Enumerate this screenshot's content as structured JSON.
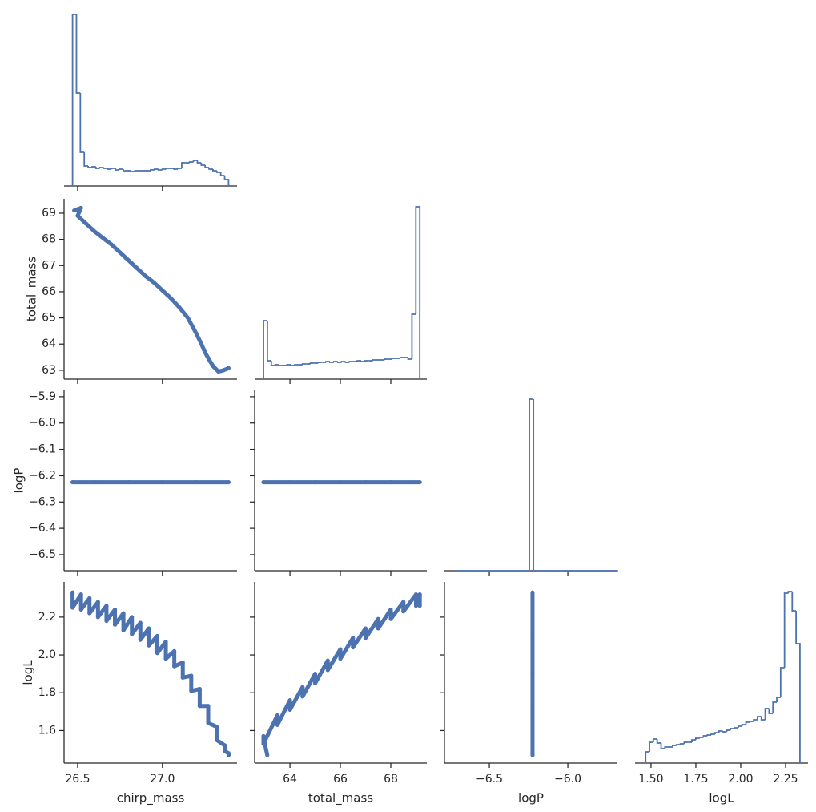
{
  "chart_data": [
    {
      "type": "histogram",
      "color": "#4c72b0",
      "xlim": [
        26.42,
        27.44
      ],
      "xticks": [
        26.5,
        27.0
      ],
      "ylim": [
        0,
        222
      ],
      "bins": [
        26.47,
        26.493,
        26.516,
        26.539,
        26.562,
        26.585,
        26.608,
        26.631,
        26.654,
        26.677,
        26.7,
        26.723,
        26.746,
        26.769,
        26.792,
        26.815,
        26.838,
        26.861,
        26.884,
        26.907,
        26.93,
        26.953,
        26.976,
        26.999,
        27.022,
        27.045,
        27.068,
        27.091,
        27.114,
        27.137,
        27.16,
        27.183,
        27.206,
        27.229,
        27.252,
        27.275,
        27.298,
        27.321,
        27.344,
        27.367,
        27.39
      ],
      "counts": [
        214,
        116,
        42,
        25,
        23,
        24,
        22,
        23,
        22,
        21,
        22,
        20,
        21,
        19,
        19,
        18,
        19,
        19,
        19,
        19,
        20,
        21,
        20,
        21,
        22,
        22,
        21,
        22,
        29,
        29,
        30,
        32,
        29,
        26,
        23,
        21,
        19,
        17,
        13,
        8
      ]
    },
    {
      "type": "scatter",
      "color": "#4c72b0",
      "xlim": [
        26.42,
        27.44
      ],
      "xticks": [
        26.5,
        27.0
      ],
      "ylim": [
        62.66,
        69.55
      ],
      "yticks": [
        63,
        64,
        65,
        66,
        67,
        68,
        69
      ],
      "ylabel": "total_mass",
      "x": [
        26.48,
        26.5,
        26.52,
        26.5,
        26.55,
        26.6,
        26.65,
        26.7,
        26.75,
        26.8,
        26.85,
        26.9,
        26.95,
        27.0,
        27.05,
        27.1,
        27.15,
        27.2,
        27.23,
        27.25,
        27.28,
        27.3,
        27.33,
        27.36,
        27.39
      ],
      "y": [
        69.1,
        69.15,
        69.2,
        68.9,
        68.6,
        68.3,
        68.05,
        67.8,
        67.5,
        67.2,
        66.9,
        66.6,
        66.35,
        66.05,
        65.75,
        65.4,
        65.0,
        64.4,
        64.0,
        63.7,
        63.35,
        63.15,
        62.95,
        63.0,
        63.08
      ]
    },
    {
      "type": "histogram",
      "color": "#4c72b0",
      "xlim": [
        62.6,
        69.43
      ],
      "xticks": [
        64,
        66,
        68
      ],
      "ylim": [
        0,
        225
      ],
      "bins": [
        62.95,
        63.105,
        63.26,
        63.415,
        63.57,
        63.725,
        63.88,
        64.035,
        64.19,
        64.345,
        64.5,
        64.655,
        64.81,
        64.965,
        65.12,
        65.275,
        65.43,
        65.585,
        65.74,
        65.895,
        66.05,
        66.205,
        66.36,
        66.515,
        66.67,
        66.825,
        66.98,
        67.135,
        67.29,
        67.445,
        67.6,
        67.755,
        67.91,
        68.065,
        68.22,
        68.375,
        68.53,
        68.685,
        68.84,
        68.995,
        69.15
      ],
      "counts": [
        73,
        23,
        17,
        18,
        17,
        17,
        18,
        17,
        18,
        18,
        19,
        19,
        20,
        20,
        21,
        21,
        22,
        21,
        22,
        21,
        22,
        21,
        22,
        22,
        23,
        22,
        23,
        23,
        24,
        24,
        24,
        25,
        25,
        26,
        26,
        27,
        27,
        25,
        81,
        215
      ]
    },
    {
      "type": "scatter",
      "color": "#4c72b0",
      "xlim": [
        26.42,
        27.44
      ],
      "xticks": [
        26.5,
        27.0
      ],
      "ylim": [
        -6.561,
        -5.876
      ],
      "yticks": [
        {
          "value": -6.5,
          "label": "−6.5"
        },
        {
          "value": -6.4,
          "label": "−6.4"
        },
        {
          "value": -6.3,
          "label": "−6.3"
        },
        {
          "value": -6.2,
          "label": "−6.2"
        },
        {
          "value": -6.1,
          "label": "−6.1"
        },
        {
          "value": -6.0,
          "label": "−6.0"
        },
        {
          "value": -5.9,
          "label": "−5.9"
        }
      ],
      "ylabel": "logP",
      "x": [
        26.47,
        26.6,
        26.8,
        27.0,
        27.2,
        27.39
      ],
      "y": [
        -6.225,
        -6.225,
        -6.225,
        -6.225,
        -6.225,
        -6.225
      ]
    },
    {
      "type": "scatter",
      "color": "#4c72b0",
      "xlim": [
        62.6,
        69.43
      ],
      "xticks": [
        64,
        66,
        68
      ],
      "ylim": [
        -6.561,
        -5.876
      ],
      "yticks": [
        -6.5,
        -6.4,
        -6.3,
        -6.2,
        -6.1,
        -6.0,
        -5.9
      ],
      "x": [
        62.95,
        64,
        65,
        66,
        67,
        68,
        69.15
      ],
      "y": [
        -6.225,
        -6.225,
        -6.225,
        -6.225,
        -6.225,
        -6.225,
        -6.225
      ]
    },
    {
      "type": "histogram",
      "color": "#4c72b0",
      "xlim": [
        -6.786,
        -5.684
      ],
      "xticks": [
        -6.5,
        -6.0
      ],
      "ylim": [
        0,
        225
      ],
      "bins": [
        -6.72,
        -6.245,
        -6.219,
        -5.68
      ],
      "counts": [
        0,
        214,
        0
      ]
    },
    {
      "type": "scatter",
      "color": "#4c72b0",
      "xlim": [
        26.42,
        27.44
      ],
      "xticks": [
        {
          "value": 26.5,
          "label": "26.5"
        },
        {
          "value": 27.0,
          "label": "27.0"
        }
      ],
      "ylim": [
        1.428,
        2.386
      ],
      "yticks": [
        1.6,
        1.8,
        {
          "value": 2.0,
          "label": "2.0"
        },
        2.2
      ],
      "xlabel": "chirp_mass",
      "ylabel": "logL",
      "x": [
        26.47,
        26.47,
        26.52,
        26.52,
        26.57,
        26.57,
        26.62,
        26.62,
        26.67,
        26.67,
        26.72,
        26.72,
        26.77,
        26.77,
        26.82,
        26.82,
        26.87,
        26.87,
        26.92,
        26.92,
        26.97,
        26.97,
        27.02,
        27.02,
        27.07,
        27.07,
        27.12,
        27.12,
        27.17,
        27.17,
        27.22,
        27.22,
        27.27,
        27.27,
        27.32,
        27.32,
        27.37,
        27.37,
        27.39,
        27.39
      ],
      "y": [
        2.33,
        2.25,
        2.32,
        2.24,
        2.3,
        2.22,
        2.28,
        2.2,
        2.26,
        2.18,
        2.24,
        2.16,
        2.22,
        2.13,
        2.2,
        2.11,
        2.17,
        2.08,
        2.14,
        2.05,
        2.1,
        2.01,
        2.07,
        1.98,
        2.02,
        1.94,
        1.96,
        1.88,
        1.89,
        1.81,
        1.82,
        1.73,
        1.73,
        1.64,
        1.62,
        1.55,
        1.52,
        1.49,
        1.48,
        1.47
      ]
    },
    {
      "type": "scatter",
      "color": "#4c72b0",
      "xlim": [
        62.6,
        69.43
      ],
      "xticks": [
        64,
        66,
        68
      ],
      "ylim": [
        1.428,
        2.386
      ],
      "yticks": [
        1.6,
        1.8,
        2.0,
        2.2
      ],
      "xlabel": "total_mass",
      "x": [
        63.1,
        63.05,
        62.95,
        62.95,
        63.5,
        63.5,
        64.0,
        64.0,
        64.5,
        64.5,
        65.0,
        65.0,
        65.5,
        65.5,
        66.0,
        66.0,
        66.5,
        66.5,
        67.0,
        67.0,
        67.5,
        67.5,
        68.0,
        68.0,
        68.5,
        68.5,
        69.0,
        69.0,
        69.15,
        69.15
      ],
      "y": [
        1.47,
        1.5,
        1.57,
        1.53,
        1.68,
        1.63,
        1.76,
        1.71,
        1.83,
        1.78,
        1.9,
        1.85,
        1.97,
        1.92,
        2.03,
        1.98,
        2.09,
        2.04,
        2.14,
        2.09,
        2.19,
        2.14,
        2.24,
        2.19,
        2.28,
        2.23,
        2.32,
        2.26,
        2.32,
        2.26
      ]
    },
    {
      "type": "scatter",
      "color": "#4c72b0",
      "xlim": [
        -6.786,
        -5.684
      ],
      "xticks": [
        {
          "value": -6.5,
          "label": "−6.5"
        },
        {
          "value": -6.0,
          "label": "−6.0"
        }
      ],
      "ylim": [
        1.428,
        2.386
      ],
      "yticks": [
        1.6,
        1.8,
        2.0,
        2.2
      ],
      "xlabel": "logP",
      "x": [
        -6.225,
        -6.225,
        -6.225,
        -6.225,
        -6.225
      ],
      "y": [
        1.47,
        1.7,
        1.9,
        2.1,
        2.33
      ]
    },
    {
      "type": "histogram",
      "color": "#4c72b0",
      "xlim": [
        1.411,
        2.375
      ],
      "xticks": [
        {
          "value": 1.5,
          "label": "1.50"
        },
        {
          "value": 1.75,
          "label": "1.75"
        },
        {
          "value": 2.0,
          "label": "2.00"
        },
        {
          "value": 2.25,
          "label": "2.25"
        }
      ],
      "ylim": [
        0,
        226
      ],
      "xlabel": "logL",
      "bins": [
        1.47,
        1.4915,
        1.513,
        1.5345,
        1.556,
        1.5775,
        1.599,
        1.6205,
        1.642,
        1.6635,
        1.685,
        1.7065,
        1.728,
        1.7495,
        1.771,
        1.7925,
        1.814,
        1.8355,
        1.857,
        1.8785,
        1.9,
        1.9215,
        1.943,
        1.9645,
        1.986,
        2.0075,
        2.029,
        2.0505,
        2.072,
        2.0935,
        2.115,
        2.1365,
        2.158,
        2.1795,
        2.201,
        2.2225,
        2.244,
        2.2655,
        2.287,
        2.3085,
        2.33
      ],
      "counts": [
        14,
        26,
        30,
        25,
        18,
        20,
        20,
        22,
        23,
        24,
        26,
        26,
        29,
        31,
        32,
        34,
        35,
        36,
        38,
        40,
        39,
        41,
        43,
        44,
        46,
        48,
        51,
        52,
        54,
        58,
        54,
        68,
        62,
        76,
        82,
        119,
        212,
        214,
        190,
        149
      ]
    }
  ]
}
